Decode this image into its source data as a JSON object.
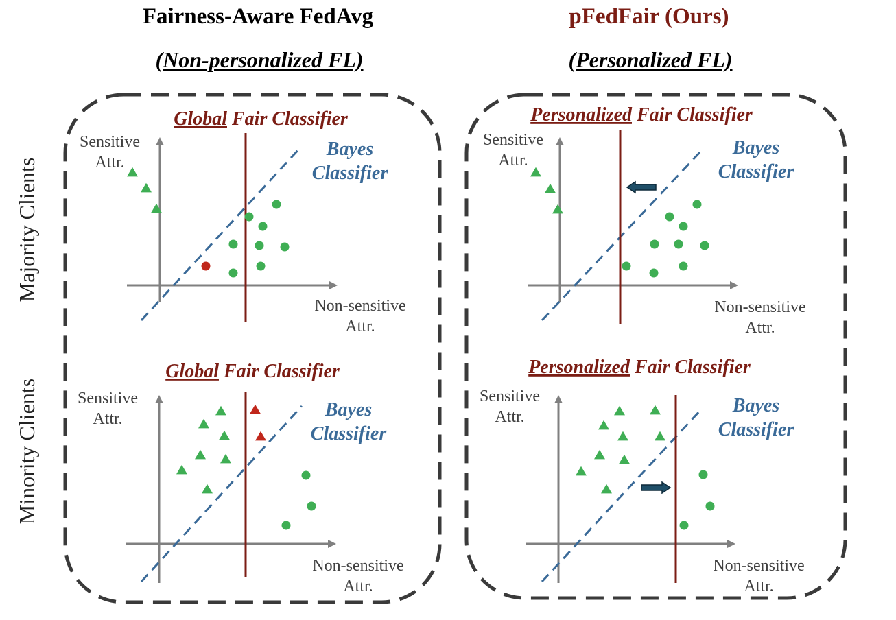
{
  "colors": {
    "dark_red": "#7b1d14",
    "blue": "#3a6a98",
    "green": "#3fae54",
    "red_point": "#c0271b",
    "axis": "#808080",
    "box": "#3a3a3a",
    "arrow_fill": "#1f4f68",
    "text_gray": "#404040"
  },
  "headers": {
    "left_title": "Fairness-Aware FedAvg",
    "left_subtitle": "(Non-personalized FL)",
    "right_title": "pFedFair (Ours)",
    "right_subtitle": "(Personalized FL)"
  },
  "row_labels": {
    "majority": "Majority Clients",
    "minority": "Minority Clients"
  },
  "axis_labels": {
    "y_line1": "Sensitive",
    "y_line2": "Attr.",
    "x_line1": "Non-sensitive",
    "x_line2": "Attr."
  },
  "classifier_labels": {
    "global_em": "Global",
    "personalized_em": "Personalized",
    "fair_classifier": "Fair Classifier",
    "bayes_line1": "Bayes",
    "bayes_line2": "Classifier"
  },
  "panels": [
    {
      "id": "tl",
      "fair_label_type": "global",
      "points": [
        {
          "shape": "triangle",
          "color": "green",
          "x": -40,
          "y": 165
        },
        {
          "shape": "triangle",
          "color": "green",
          "x": -20,
          "y": 142
        },
        {
          "shape": "triangle",
          "color": "green",
          "x": -5,
          "y": 112
        },
        {
          "shape": "circle",
          "color": "green",
          "x": 170,
          "y": 118
        },
        {
          "shape": "circle",
          "color": "green",
          "x": 130,
          "y": 100
        },
        {
          "shape": "circle",
          "color": "green",
          "x": 150,
          "y": 86
        },
        {
          "shape": "circle",
          "color": "green",
          "x": 107,
          "y": 60
        },
        {
          "shape": "circle",
          "color": "green",
          "x": 145,
          "y": 58
        },
        {
          "shape": "circle",
          "color": "green",
          "x": 182,
          "y": 56
        },
        {
          "shape": "circle",
          "color": "green",
          "x": 147,
          "y": 28
        },
        {
          "shape": "circle",
          "color": "green",
          "x": 107,
          "y": 18
        },
        {
          "shape": "circle",
          "color": "red_point",
          "x": 67,
          "y": 28
        }
      ],
      "arrow": null
    },
    {
      "id": "tr",
      "fair_label_type": "personalized",
      "points": [
        {
          "shape": "triangle",
          "color": "green",
          "x": -35,
          "y": 165
        },
        {
          "shape": "triangle",
          "color": "green",
          "x": -14,
          "y": 141
        },
        {
          "shape": "triangle",
          "color": "green",
          "x": -3,
          "y": 111
        },
        {
          "shape": "circle",
          "color": "green",
          "x": 200,
          "y": 118
        },
        {
          "shape": "circle",
          "color": "green",
          "x": 160,
          "y": 100
        },
        {
          "shape": "circle",
          "color": "green",
          "x": 180,
          "y": 86
        },
        {
          "shape": "circle",
          "color": "green",
          "x": 138,
          "y": 60
        },
        {
          "shape": "circle",
          "color": "green",
          "x": 173,
          "y": 60
        },
        {
          "shape": "circle",
          "color": "green",
          "x": 211,
          "y": 58
        },
        {
          "shape": "circle",
          "color": "green",
          "x": 180,
          "y": 28
        },
        {
          "shape": "circle",
          "color": "green",
          "x": 137,
          "y": 18
        },
        {
          "shape": "circle",
          "color": "green",
          "x": 97,
          "y": 28
        }
      ],
      "arrow": {
        "direction": "left"
      }
    },
    {
      "id": "bl",
      "fair_label_type": "global",
      "points": [
        {
          "shape": "triangle",
          "color": "green",
          "x": 90,
          "y": 194
        },
        {
          "shape": "triangle",
          "color": "green",
          "x": 65,
          "y": 175
        },
        {
          "shape": "triangle",
          "color": "green",
          "x": 95,
          "y": 158
        },
        {
          "shape": "triangle",
          "color": "green",
          "x": 60,
          "y": 130
        },
        {
          "shape": "triangle",
          "color": "green",
          "x": 97,
          "y": 124
        },
        {
          "shape": "triangle",
          "color": "green",
          "x": 33,
          "y": 108
        },
        {
          "shape": "triangle",
          "color": "green",
          "x": 70,
          "y": 80
        },
        {
          "shape": "triangle",
          "color": "red_point",
          "x": 140,
          "y": 196
        },
        {
          "shape": "triangle",
          "color": "red_point",
          "x": 148,
          "y": 157
        },
        {
          "shape": "circle",
          "color": "green",
          "x": 214,
          "y": 100
        },
        {
          "shape": "circle",
          "color": "green",
          "x": 222,
          "y": 55
        },
        {
          "shape": "circle",
          "color": "green",
          "x": 185,
          "y": 27
        }
      ],
      "arrow": null
    },
    {
      "id": "br",
      "fair_label_type": "personalized",
      "points": [
        {
          "shape": "triangle",
          "color": "green",
          "x": 89,
          "y": 194
        },
        {
          "shape": "triangle",
          "color": "green",
          "x": 141,
          "y": 195
        },
        {
          "shape": "triangle",
          "color": "green",
          "x": 66,
          "y": 173
        },
        {
          "shape": "triangle",
          "color": "green",
          "x": 94,
          "y": 157
        },
        {
          "shape": "triangle",
          "color": "green",
          "x": 148,
          "y": 157
        },
        {
          "shape": "triangle",
          "color": "green",
          "x": 60,
          "y": 130
        },
        {
          "shape": "triangle",
          "color": "green",
          "x": 96,
          "y": 123
        },
        {
          "shape": "triangle",
          "color": "green",
          "x": 33,
          "y": 106
        },
        {
          "shape": "triangle",
          "color": "green",
          "x": 70,
          "y": 80
        },
        {
          "shape": "circle",
          "color": "green",
          "x": 211,
          "y": 101
        },
        {
          "shape": "circle",
          "color": "green",
          "x": 221,
          "y": 55
        },
        {
          "shape": "circle",
          "color": "green",
          "x": 183,
          "y": 27
        }
      ],
      "arrow": {
        "direction": "right"
      }
    }
  ]
}
